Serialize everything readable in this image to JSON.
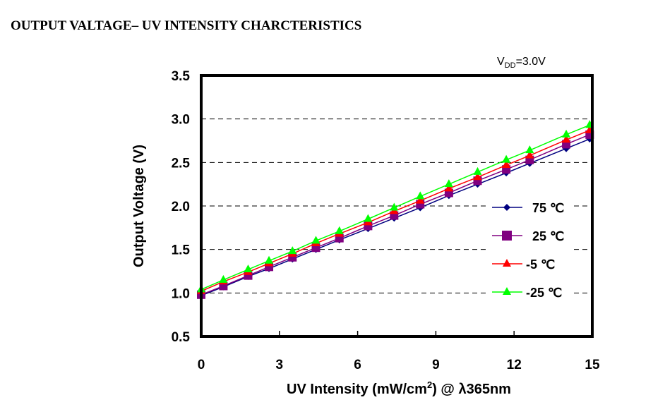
{
  "chart_data": {
    "type": "line",
    "title": "OUTPUT VALTAGE– UV INTENSITY CHARCTERISTICS",
    "annotation": {
      "base": "V",
      "sub": "DD",
      "rest": "=3.0V"
    },
    "xlabel": {
      "pre": "UV Intensity (mW/cm",
      "sup": "2",
      "post": ") @ λ365nm"
    },
    "ylabel": "Output Voltage (V)",
    "xlim": [
      0,
      15
    ],
    "ylim": [
      0.5,
      3.5
    ],
    "xticks": [
      "0",
      "3",
      "6",
      "9",
      "12",
      "15"
    ],
    "yticks": [
      "0.5",
      "1.0",
      "1.5",
      "2.0",
      "2.5",
      "3.0",
      "3.5"
    ],
    "grid": "horizontal dashed",
    "legend": "right-middle",
    "x": [
      0,
      0.85,
      1.8,
      2.6,
      3.5,
      4.4,
      5.3,
      6.4,
      7.4,
      8.4,
      9.5,
      10.6,
      11.7,
      12.6,
      14.0,
      14.9
    ],
    "series": [
      {
        "name": "75 ℃",
        "color": "#000080",
        "marker": "diamond",
        "values": [
          0.97,
          1.07,
          1.19,
          1.28,
          1.39,
          1.5,
          1.61,
          1.74,
          1.86,
          1.98,
          2.12,
          2.25,
          2.38,
          2.49,
          2.66,
          2.77
        ]
      },
      {
        "name": "25 ℃",
        "color": "#800080",
        "marker": "square",
        "values": [
          0.98,
          1.08,
          1.2,
          1.3,
          1.41,
          1.52,
          1.63,
          1.77,
          1.89,
          2.02,
          2.15,
          2.29,
          2.42,
          2.53,
          2.71,
          2.82
        ]
      },
      {
        "name": "-5 ℃",
        "color": "#ff0000",
        "marker": "triangle",
        "values": [
          1.02,
          1.13,
          1.24,
          1.34,
          1.45,
          1.57,
          1.68,
          1.81,
          1.94,
          2.06,
          2.2,
          2.33,
          2.47,
          2.58,
          2.76,
          2.87
        ]
      },
      {
        "name": "-25 ℃",
        "color": "#00ff00",
        "marker": "triangle",
        "values": [
          1.04,
          1.15,
          1.27,
          1.37,
          1.48,
          1.6,
          1.71,
          1.85,
          1.98,
          2.11,
          2.25,
          2.39,
          2.53,
          2.64,
          2.82,
          2.93
        ]
      }
    ]
  }
}
